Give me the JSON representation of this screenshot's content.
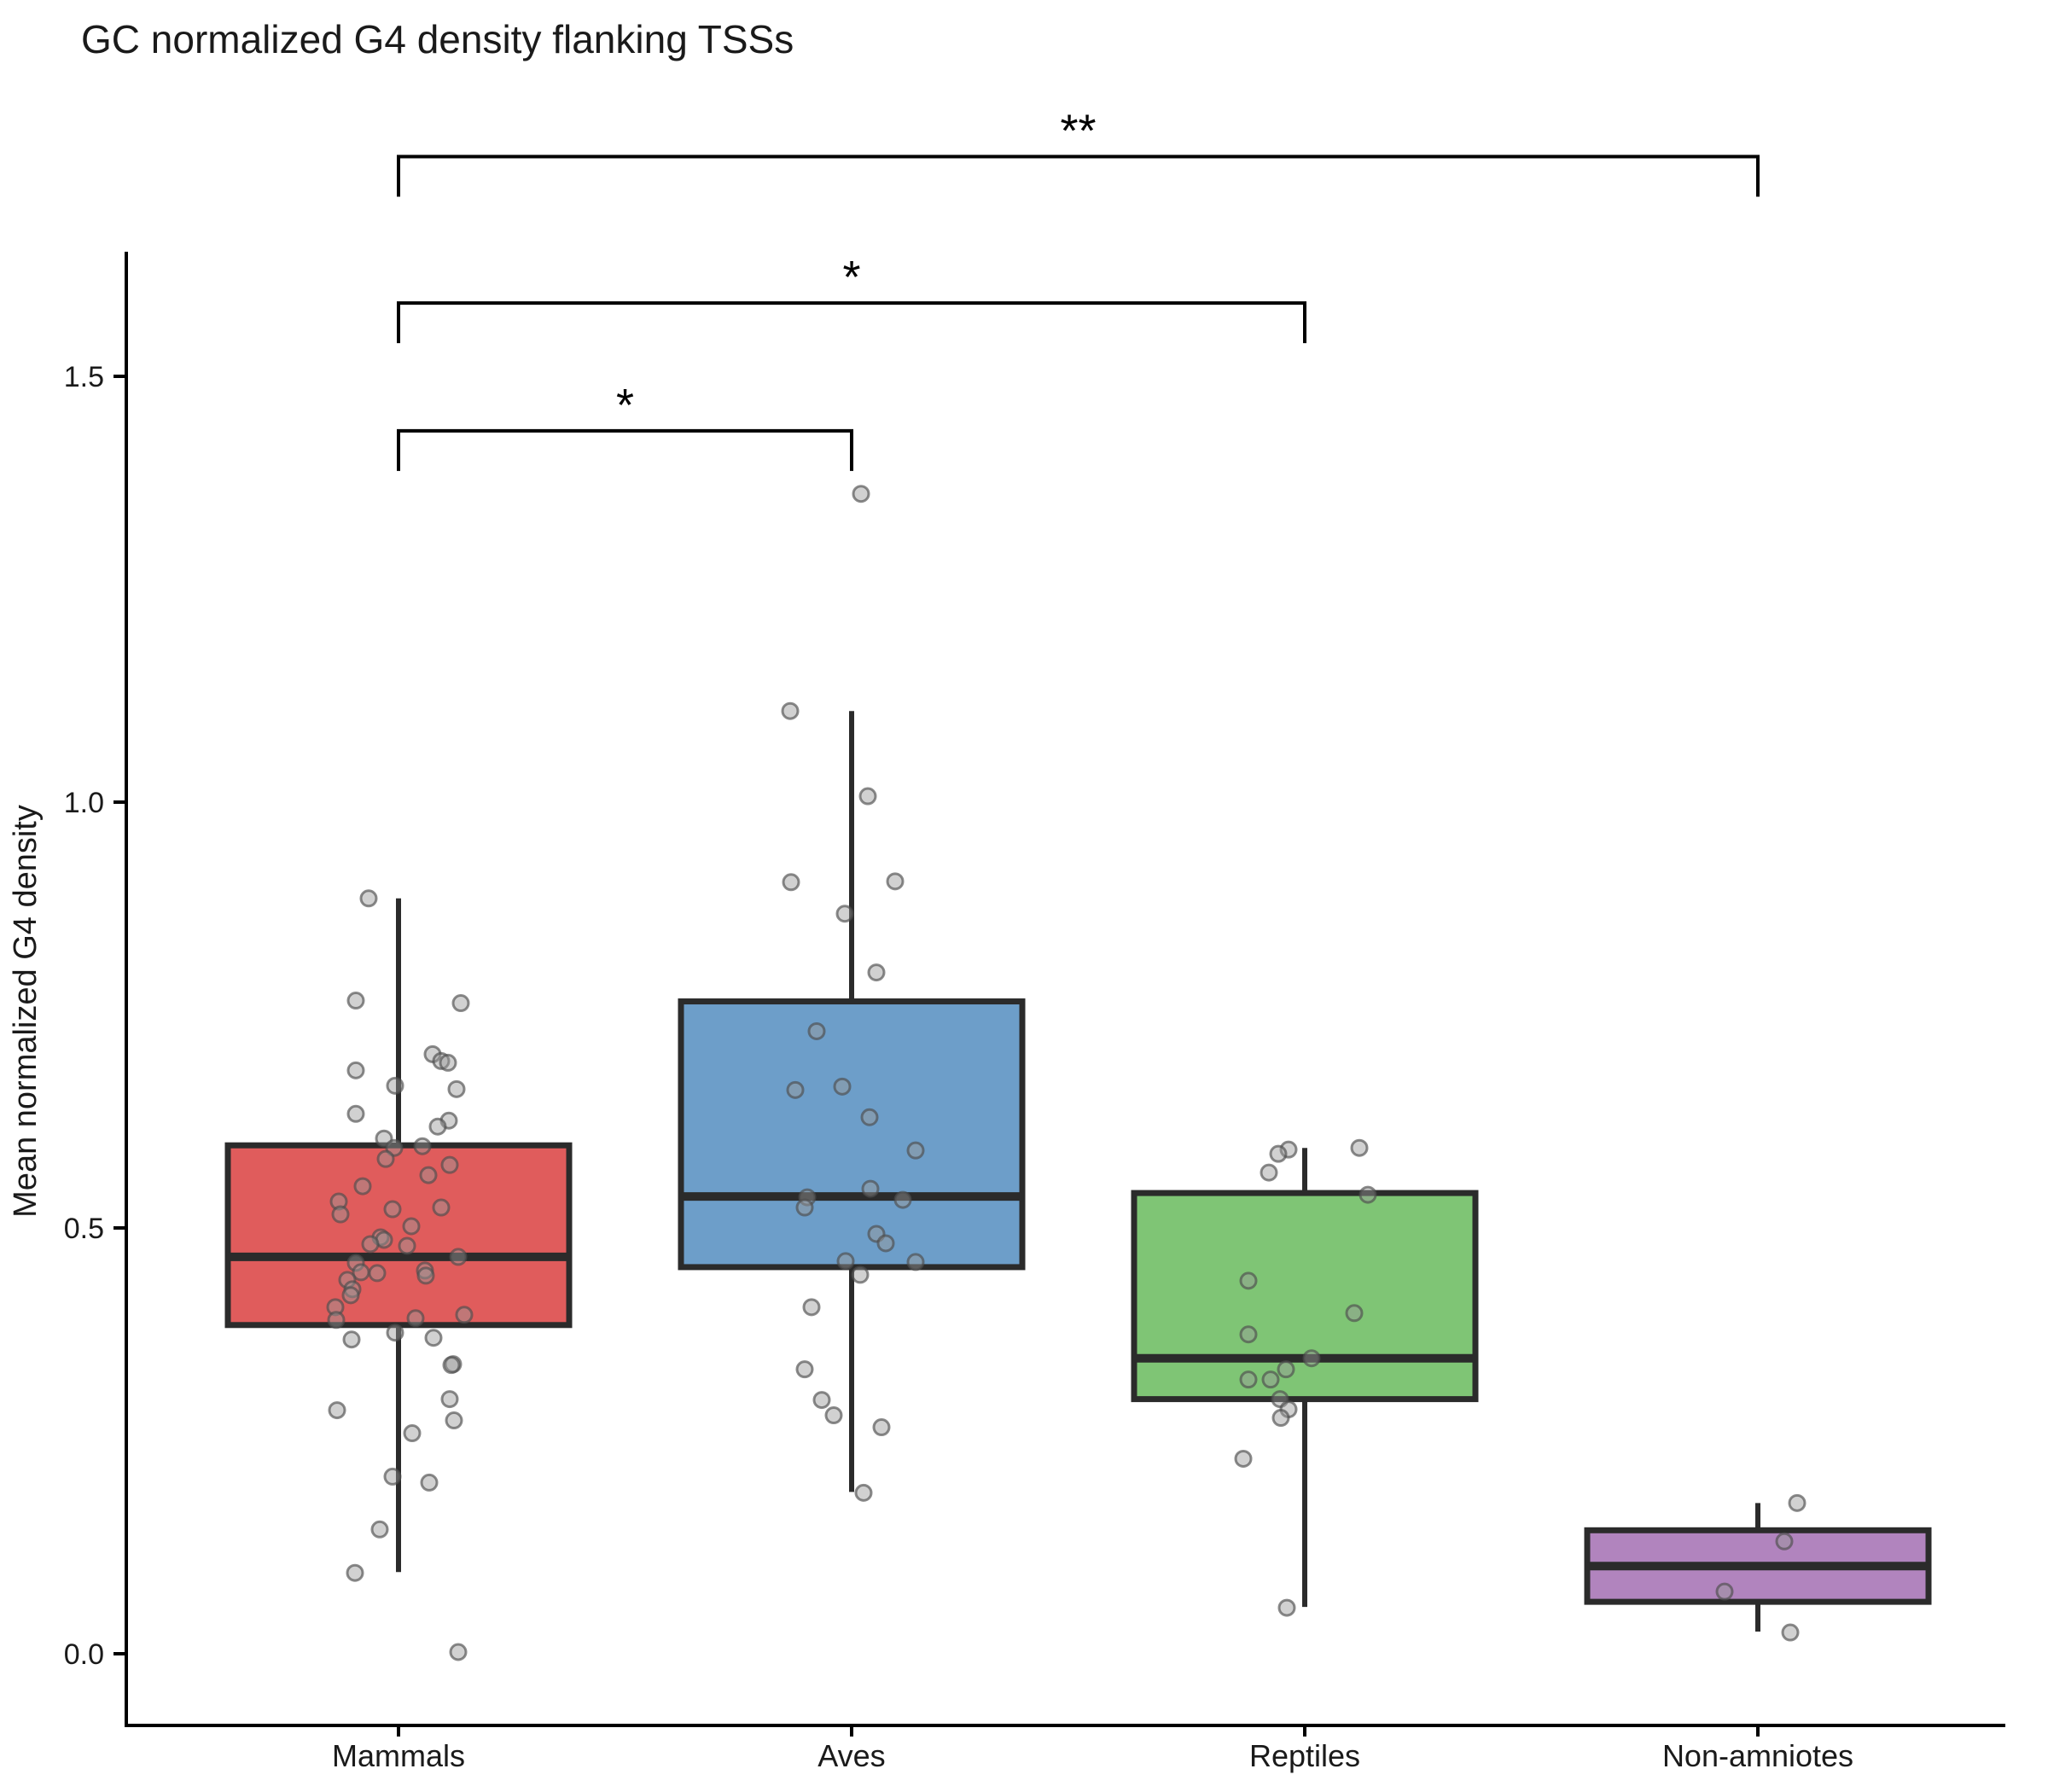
{
  "title": "GC normalized G4 density flanking TSSs",
  "y_axis": {
    "label": "Mean normalized G4 density",
    "ticks": [
      {
        "label": "0.0",
        "value": 0.0
      },
      {
        "label": "0.5",
        "value": 0.5
      },
      {
        "label": "1.0",
        "value": 1.0
      },
      {
        "label": "1.5",
        "value": 1.5
      }
    ]
  },
  "x_axis": {
    "categories": [
      "Mammals",
      "Aves",
      "Reptiles",
      "Non-amniotes"
    ]
  },
  "chart_data": {
    "type": "boxplot",
    "title": "GC normalized G4 density flanking TSSs",
    "xlabel": "",
    "ylabel": "Mean normalized G4 density",
    "ylim": [
      -0.08,
      1.65
    ],
    "grid": false,
    "legend_position": "none",
    "categories": [
      "Mammals",
      "Aves",
      "Reptiles",
      "Non-amniotes"
    ],
    "point_style": {
      "fill": "#999999",
      "stroke": "#4d4d4d",
      "opacity": 0.45,
      "radius": 9
    },
    "box_style": {
      "stroke": "#2b2b2b",
      "border_width": 7,
      "median_width": 10,
      "whisker_width": 6
    },
    "series": [
      {
        "name": "Mammals",
        "color": "#E05C5C",
        "box": {
          "whisker_low": 0.096,
          "q1": 0.386,
          "median": 0.466,
          "q3": 0.597,
          "whisker_high": 0.887
        },
        "points": [
          [
            0.887,
            -35
          ],
          [
            0.767,
            -50
          ],
          [
            0.764,
            73
          ],
          [
            0.704,
            40
          ],
          [
            0.696,
            50
          ],
          [
            0.694,
            58
          ],
          [
            0.685,
            -50
          ],
          [
            0.667,
            -4
          ],
          [
            0.663,
            68
          ],
          [
            0.634,
            -50
          ],
          [
            0.626,
            59
          ],
          [
            0.619,
            46
          ],
          [
            0.605,
            -17
          ],
          [
            0.596,
            28
          ],
          [
            0.594,
            -5
          ],
          [
            0.581,
            -15
          ],
          [
            0.574,
            60
          ],
          [
            0.562,
            35
          ],
          [
            0.549,
            -42
          ],
          [
            0.531,
            -70
          ],
          [
            0.524,
            50
          ],
          [
            0.522,
            -7
          ],
          [
            0.516,
            -68
          ],
          [
            0.502,
            15
          ],
          [
            0.489,
            -21
          ],
          [
            0.486,
            -17
          ],
          [
            0.481,
            -33
          ],
          [
            0.479,
            10
          ],
          [
            0.466,
            70
          ],
          [
            0.459,
            -50
          ],
          [
            0.45,
            31
          ],
          [
            0.448,
            -44
          ],
          [
            0.447,
            -25
          ],
          [
            0.444,
            32
          ],
          [
            0.439,
            -60
          ],
          [
            0.428,
            -54
          ],
          [
            0.421,
            -56
          ],
          [
            0.407,
            -74
          ],
          [
            0.398,
            77
          ],
          [
            0.394,
            20
          ],
          [
            0.392,
            -73
          ],
          [
            0.377,
            -4
          ],
          [
            0.371,
            41
          ],
          [
            0.369,
            -55
          ],
          [
            0.34,
            64
          ],
          [
            0.339,
            62
          ],
          [
            0.299,
            60
          ],
          [
            0.286,
            -72
          ],
          [
            0.274,
            65
          ],
          [
            0.259,
            16
          ],
          [
            0.208,
            -7
          ],
          [
            0.201,
            36
          ],
          [
            0.146,
            -22
          ],
          [
            0.095,
            -51
          ],
          [
            0.002,
            70
          ]
        ]
      },
      {
        "name": "Aves",
        "color": "#6D9EC9",
        "box": {
          "whisker_low": 0.19,
          "q1": 0.454,
          "median": 0.537,
          "q3": 0.766,
          "whisker_high": 1.107
        },
        "points": [
          [
            1.362,
            11
          ],
          [
            1.107,
            -72
          ],
          [
            1.007,
            19
          ],
          [
            0.907,
            51
          ],
          [
            0.906,
            -71
          ],
          [
            0.869,
            -8
          ],
          [
            0.8,
            29
          ],
          [
            0.731,
            -41
          ],
          [
            0.666,
            -11
          ],
          [
            0.662,
            -66
          ],
          [
            0.63,
            21
          ],
          [
            0.591,
            75
          ],
          [
            0.546,
            22
          ],
          [
            0.536,
            -52
          ],
          [
            0.533,
            60
          ],
          [
            0.524,
            -55
          ],
          [
            0.493,
            29
          ],
          [
            0.482,
            40
          ],
          [
            0.461,
            -7
          ],
          [
            0.46,
            75
          ],
          [
            0.445,
            10
          ],
          [
            0.407,
            -47
          ],
          [
            0.334,
            -55
          ],
          [
            0.298,
            -35
          ],
          [
            0.28,
            -21
          ],
          [
            0.266,
            35
          ],
          [
            0.189,
            14
          ]
        ]
      },
      {
        "name": "Reptiles",
        "color": "#7FC575",
        "box": {
          "whisker_low": 0.055,
          "q1": 0.299,
          "median": 0.347,
          "q3": 0.541,
          "whisker_high": 0.594
        },
        "points": [
          [
            0.594,
            64
          ],
          [
            0.592,
            -19
          ],
          [
            0.587,
            -31
          ],
          [
            0.565,
            -42
          ],
          [
            0.539,
            74
          ],
          [
            0.438,
            -66
          ],
          [
            0.4,
            58
          ],
          [
            0.375,
            -66
          ],
          [
            0.347,
            8
          ],
          [
            0.334,
            -22
          ],
          [
            0.322,
            -66
          ],
          [
            0.322,
            -40
          ],
          [
            0.299,
            -29
          ],
          [
            0.287,
            -19
          ],
          [
            0.277,
            -28
          ],
          [
            0.229,
            -72
          ],
          [
            0.054,
            -21
          ]
        ]
      },
      {
        "name": "Non-amniotes",
        "color": "#B184BE",
        "box": {
          "whisker_low": 0.026,
          "q1": 0.061,
          "median": 0.103,
          "q3": 0.145,
          "whisker_high": 0.177
        },
        "points": [
          [
            0.177,
            46
          ],
          [
            0.132,
            31
          ],
          [
            0.073,
            -39
          ],
          [
            0.025,
            38
          ]
        ]
      }
    ],
    "significance": [
      {
        "from": "Mammals",
        "to": "Aves",
        "label": "*",
        "height": 1.436
      },
      {
        "from": "Mammals",
        "to": "Reptiles",
        "label": "*",
        "height": 1.586
      },
      {
        "from": "Mammals",
        "to": "Non-amniotes",
        "label": "**",
        "height": 1.758
      }
    ]
  }
}
